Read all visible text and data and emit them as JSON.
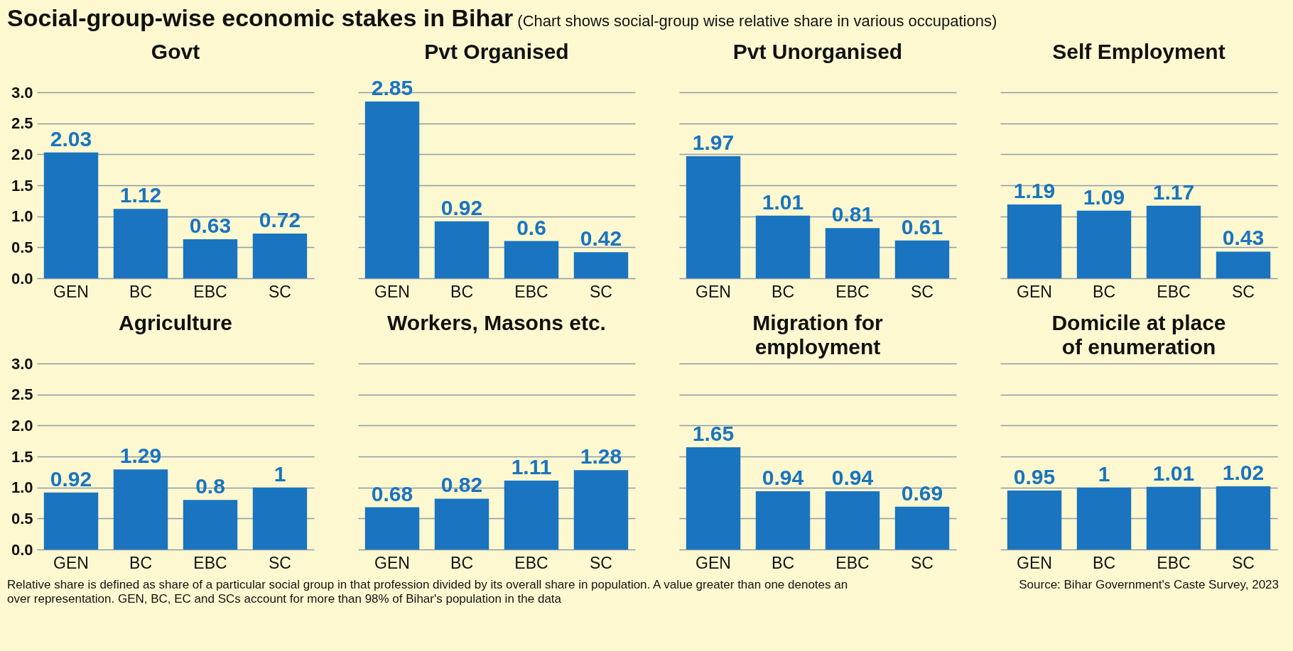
{
  "chart_data": [
    {
      "type": "other",
      "title": "Social-group-wise economic stakes in Bihar",
      "subtitle": "(Chart shows social-group wise relative share in various occupations)",
      "annotations": [
        "Relative share is defined as share of a particular social group in that profession divided by its overall share in population. A value greater than one denotes an over representation. GEN, BC, EC and SCs account for more than 98% of Bihar's population in the data",
        "Source: Bihar Government's Caste Survey, 2023"
      ]
    },
    {
      "type": "bar",
      "title": "Govt",
      "categories": [
        "GEN",
        "BC",
        "EBC",
        "SC"
      ],
      "values": [
        2.03,
        1.12,
        0.63,
        0.72
      ],
      "color": "#1a74c0",
      "data_labels": true,
      "ylim": [
        0,
        3
      ],
      "yticks": [
        {
          "value": 0,
          "label": "0.0"
        },
        0.5,
        {
          "value": 1,
          "label": "1.0"
        },
        1.5,
        {
          "value": 2,
          "label": "2.0"
        },
        2.5,
        {
          "value": 3,
          "label": "3.0"
        }
      ],
      "grid": "y"
    },
    {
      "type": "bar",
      "title": "Pvt Organised",
      "categories": [
        "GEN",
        "BC",
        "EBC",
        "SC"
      ],
      "values": [
        2.85,
        0.92,
        0.6,
        0.42
      ],
      "color": "#1a74c0",
      "data_labels": true,
      "ylim": [
        0,
        3
      ],
      "yticks": [
        0.0,
        0.5,
        1.0,
        1.5,
        2.0,
        2.5,
        3.0
      ],
      "grid": "y",
      "tick_labels": "x"
    },
    {
      "type": "bar",
      "title": "Pvt Unorganised",
      "categories": [
        "GEN",
        "BC",
        "EBC",
        "SC"
      ],
      "values": [
        1.97,
        1.01,
        0.81,
        0.61
      ],
      "color": "#1a74c0",
      "data_labels": true,
      "ylim": [
        0,
        3
      ],
      "yticks": [
        0.0,
        0.5,
        1.0,
        1.5,
        2.0,
        2.5,
        3.0
      ],
      "grid": "y",
      "tick_labels": "x"
    },
    {
      "type": "bar",
      "title": "Self Employment",
      "categories": [
        "GEN",
        "BC",
        "EBC",
        "SC"
      ],
      "values": [
        1.19,
        1.09,
        1.17,
        0.43
      ],
      "color": "#1a74c0",
      "data_labels": true,
      "ylim": [
        0,
        3
      ],
      "yticks": [
        0.0,
        0.5,
        1.0,
        1.5,
        2.0,
        2.5,
        3.0
      ],
      "grid": "y",
      "tick_labels": "x"
    },
    {
      "type": "bar",
      "title": "Agriculture",
      "categories": [
        "GEN",
        "BC",
        "EBC",
        "SC"
      ],
      "values": [
        0.92,
        1.29,
        0.8,
        1
      ],
      "color": "#1a74c0",
      "data_labels": true,
      "ylim": [
        0,
        3
      ],
      "yticks": [
        {
          "value": 0,
          "label": "0.0"
        },
        0.5,
        {
          "value": 1,
          "label": "1.0"
        },
        1.5,
        {
          "value": 2,
          "label": "2.0"
        },
        2.5,
        {
          "value": 3,
          "label": "3.0"
        }
      ],
      "grid": "y"
    },
    {
      "type": "bar",
      "title": "Workers, Masons etc.",
      "categories": [
        "GEN",
        "BC",
        "EBC",
        "SC"
      ],
      "values": [
        0.68,
        0.82,
        1.11,
        1.28
      ],
      "color": "#1a74c0",
      "data_labels": true,
      "ylim": [
        0,
        3
      ],
      "yticks": [
        0.0,
        0.5,
        1.0,
        1.5,
        2.0,
        2.5,
        3.0
      ],
      "grid": "y",
      "tick_labels": "x"
    },
    {
      "type": "bar",
      "title": "Migration for employment",
      "categories": [
        "GEN",
        "BC",
        "EBC",
        "SC"
      ],
      "values": [
        1.65,
        0.94,
        0.94,
        0.69
      ],
      "color": "#1a74c0",
      "data_labels": true,
      "ylim": [
        0,
        3
      ],
      "yticks": [
        0.0,
        0.5,
        1.0,
        1.5,
        2.0,
        2.5,
        3.0
      ],
      "grid": "y",
      "tick_labels": "x"
    },
    {
      "type": "bar",
      "title": "Domicile at place of enumeration",
      "categories": [
        "GEN",
        "BC",
        "EBC",
        "SC"
      ],
      "values": [
        0.95,
        1,
        1.01,
        1.02
      ],
      "color": "#1a74c0",
      "data_labels": true,
      "ylim": [
        0,
        3
      ],
      "yticks": [
        0.0,
        0.5,
        1.0,
        1.5,
        2.0,
        2.5,
        3.0
      ],
      "grid": "y",
      "tick_labels": "x"
    }
  ]
}
